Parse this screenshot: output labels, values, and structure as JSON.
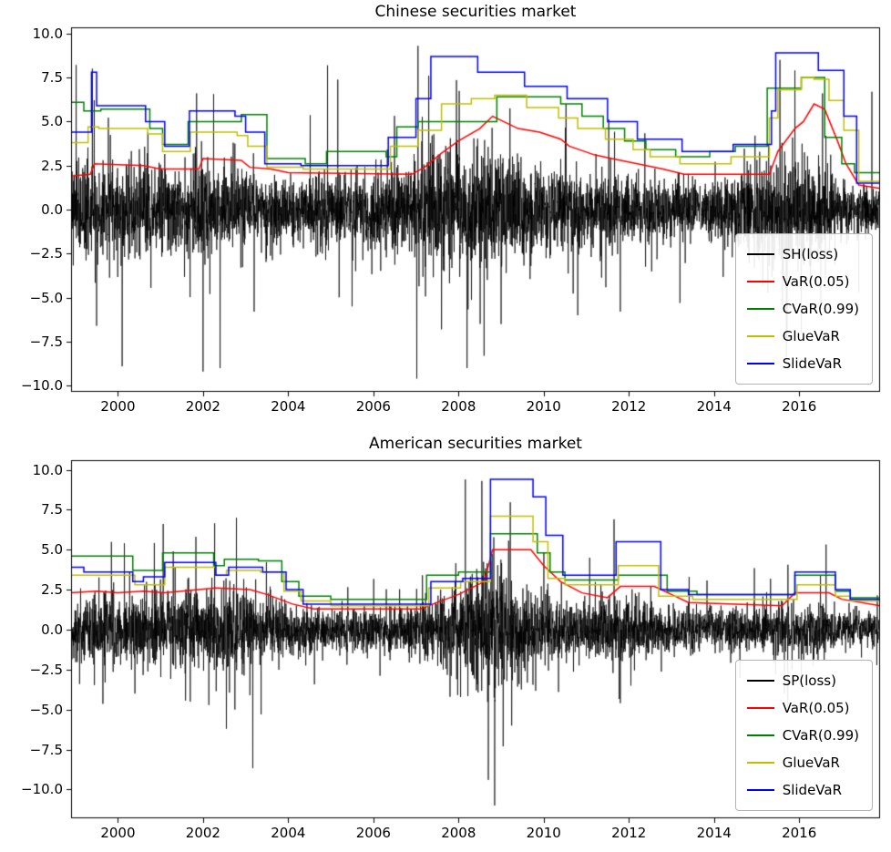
{
  "figure": {
    "background": "#ffffff"
  },
  "chart_data": [
    {
      "type": "line",
      "title": "Chinese securities market",
      "xlabel": "",
      "ylabel": "",
      "grid": false,
      "legend_position": "lower right",
      "x_range": [
        1998.9,
        2017.9
      ],
      "y_range": [
        -10.35,
        10.35
      ],
      "x_tick_values": [
        2000,
        2002,
        2004,
        2006,
        2008,
        2010,
        2012,
        2014,
        2016
      ],
      "x_tick_labels": [
        "2000",
        "2002",
        "2004",
        "2006",
        "2008",
        "2010",
        "2012",
        "2014",
        "2016"
      ],
      "y_tick_values": [
        10,
        7.5,
        5,
        2.5,
        0,
        -2.5,
        -5,
        -7.5,
        -10
      ],
      "y_tick_labels": [
        "10.0",
        "7.5",
        "5.0",
        "2.5",
        "0.0",
        "−2.5",
        "−5.0",
        "−7.5",
        "−10.0"
      ],
      "legend": [
        {
          "label": "SH(loss)",
          "color": "#000000"
        },
        {
          "label": "VaR(0.05)",
          "color": "#ff0000"
        },
        {
          "label": "CVaR(0.99)",
          "color": "#008000"
        },
        {
          "label": "GlueVaR",
          "color": "#bfbf00"
        },
        {
          "label": "SlideVaR",
          "color": "#0000ff"
        }
      ],
      "series": [
        {
          "name": "SH(loss)",
          "color": "#000000",
          "kind": "noise",
          "seed": 7,
          "points_per_year": 250,
          "clip": [
            -9.6,
            9.5
          ],
          "envelope_x": [
            1998.9,
            1999.5,
            2000.5,
            2001.5,
            2002.3,
            2003.0,
            2004.0,
            2005.0,
            2006.0,
            2006.8,
            2007.5,
            2008.5,
            2009.3,
            2010.0,
            2011.0,
            2012.0,
            2013.0,
            2014.0,
            2014.8,
            2015.5,
            2016.0,
            2016.5,
            2017.0,
            2017.9
          ],
          "envelope_sigma": [
            1.4,
            1.35,
            1.25,
            1.2,
            1.3,
            1.0,
            0.85,
            0.95,
            1.0,
            1.3,
            1.7,
            1.8,
            1.6,
            1.3,
            1.1,
            0.95,
            0.85,
            0.8,
            1.1,
            1.7,
            1.5,
            1.3,
            0.8,
            0.7
          ],
          "spikes": [
            [
              1999.4,
              8.0
            ],
            [
              1999.5,
              -6.6
            ],
            [
              2000.1,
              -8.9
            ],
            [
              2001.85,
              6.6
            ],
            [
              2002.0,
              -9.2
            ],
            [
              2002.4,
              -9.0
            ],
            [
              2003.2,
              -5.8
            ],
            [
              2005.5,
              -5.5
            ],
            [
              2007.05,
              9.3
            ],
            [
              2007.3,
              7.6
            ],
            [
              2007.6,
              -6.8
            ],
            [
              2008.2,
              -9.0
            ],
            [
              2008.6,
              -8.3
            ],
            [
              2009.0,
              -6.5
            ],
            [
              2010.8,
              -6.0
            ],
            [
              2013.2,
              -5.3
            ],
            [
              2015.55,
              8.5
            ],
            [
              2015.7,
              -8.4
            ],
            [
              2015.9,
              7.9
            ],
            [
              2016.05,
              -7.0
            ],
            [
              2016.55,
              6.6
            ]
          ]
        },
        {
          "name": "VaR(0.05)",
          "color": "#ff0000",
          "kind": "line",
          "x": [
            1998.9,
            1999.35,
            1999.45,
            2000.6,
            2001.0,
            2001.9,
            2002.0,
            2002.9,
            2003.1,
            2003.6,
            2004.0,
            2006.9,
            2007.2,
            2007.6,
            2008.0,
            2008.5,
            2008.8,
            2009.4,
            2009.9,
            2010.4,
            2010.6,
            2011.2,
            2011.6,
            2012.2,
            2012.8,
            2013.3,
            2015.3,
            2015.5,
            2015.9,
            2016.1,
            2016.35,
            2016.6,
            2016.9,
            2017.1,
            2017.4,
            2017.9
          ],
          "y": [
            1.9,
            2.0,
            2.6,
            2.5,
            2.3,
            2.3,
            2.9,
            2.8,
            2.4,
            2.3,
            2.1,
            2.0,
            2.4,
            3.2,
            3.9,
            4.6,
            5.3,
            4.6,
            4.4,
            4.0,
            3.6,
            3.1,
            2.9,
            2.6,
            2.3,
            2.0,
            2.0,
            3.3,
            4.6,
            5.0,
            6.0,
            5.7,
            3.9,
            2.6,
            1.4,
            1.2
          ]
        },
        {
          "name": "CVaR(0.99)",
          "color": "#008000",
          "kind": "step",
          "x": [
            1998.9,
            1999.2,
            1999.6,
            2000.75,
            2001.05,
            2001.65,
            2002.9,
            2003.5,
            2004.4,
            2004.9,
            2006.3,
            2006.55,
            2007.05,
            2008.9,
            2010.4,
            2010.9,
            2011.4,
            2011.9,
            2012.4,
            2013.1,
            2013.9,
            2014.5,
            2015.25,
            2016.05,
            2016.6,
            2017.0,
            2017.3,
            2017.9
          ],
          "y": [
            6.1,
            5.6,
            5.7,
            4.6,
            3.7,
            5.0,
            5.4,
            2.9,
            2.6,
            3.3,
            3.0,
            4.7,
            5.0,
            6.4,
            6.0,
            5.3,
            4.6,
            3.9,
            3.4,
            3.0,
            3.3,
            3.6,
            6.9,
            7.5,
            4.1,
            2.6,
            2.1,
            2.2
          ]
        },
        {
          "name": "GlueVaR",
          "color": "#bfbf00",
          "kind": "step",
          "x": [
            1998.9,
            1999.3,
            1999.55,
            2000.7,
            2001.05,
            2001.7,
            2002.8,
            2003.05,
            2003.5,
            2004.35,
            2006.4,
            2006.65,
            2007.05,
            2007.6,
            2008.3,
            2008.85,
            2009.6,
            2010.35,
            2010.8,
            2011.45,
            2012.1,
            2012.5,
            2013.2,
            2014.4,
            2015.3,
            2015.5,
            2016.05,
            2016.35,
            2016.7,
            2017.05,
            2017.4,
            2017.9
          ],
          "y": [
            3.8,
            4.7,
            4.6,
            4.3,
            3.3,
            4.4,
            4.2,
            3.6,
            2.4,
            2.3,
            3.6,
            3.6,
            4.5,
            6.0,
            6.3,
            6.5,
            5.8,
            5.2,
            4.6,
            4.0,
            3.4,
            3.0,
            2.6,
            3.0,
            5.2,
            6.8,
            7.5,
            7.4,
            6.2,
            4.5,
            1.6,
            1.5
          ]
        },
        {
          "name": "SlideVaR",
          "color": "#0000ff",
          "kind": "step",
          "x": [
            1998.9,
            1999.38,
            1999.5,
            2000.65,
            2001.1,
            2001.68,
            2002.75,
            2003.0,
            2003.45,
            2004.3,
            2006.35,
            2007.0,
            2007.35,
            2008.45,
            2009.55,
            2010.55,
            2011.5,
            2012.2,
            2013.25,
            2014.45,
            2015.35,
            2015.45,
            2016.45,
            2017.05,
            2017.35,
            2017.9
          ],
          "y": [
            4.4,
            7.8,
            5.9,
            5.0,
            3.6,
            5.6,
            5.3,
            4.4,
            2.6,
            2.5,
            4.1,
            6.3,
            8.7,
            7.8,
            7.0,
            6.3,
            5.0,
            4.0,
            3.3,
            3.7,
            5.6,
            8.9,
            7.9,
            5.3,
            1.5,
            1.3
          ]
        }
      ]
    },
    {
      "type": "line",
      "title": "American securities market",
      "xlabel": "",
      "ylabel": "",
      "grid": false,
      "legend_position": "lower right",
      "x_range": [
        1998.9,
        2017.9
      ],
      "y_range": [
        -11.8,
        10.6
      ],
      "x_tick_values": [
        2000,
        2002,
        2004,
        2006,
        2008,
        2010,
        2012,
        2014,
        2016
      ],
      "x_tick_labels": [
        "2000",
        "2002",
        "2004",
        "2006",
        "2008",
        "2010",
        "2012",
        "2014",
        "2016"
      ],
      "y_tick_values": [
        10,
        7.5,
        5,
        2.5,
        0,
        -2.5,
        -5,
        -7.5,
        -10
      ],
      "y_tick_labels": [
        "10.0",
        "7.5",
        "5.0",
        "2.5",
        "0.0",
        "−2.5",
        "−5.0",
        "−7.5",
        "−10.0"
      ],
      "legend": [
        {
          "label": "SP(loss)",
          "color": "#000000"
        },
        {
          "label": "VaR(0.05)",
          "color": "#ff0000"
        },
        {
          "label": "CVaR(0.99)",
          "color": "#008000"
        },
        {
          "label": "GlueVaR",
          "color": "#bfbf00"
        },
        {
          "label": "SlideVaR",
          "color": "#0000ff"
        }
      ],
      "series": [
        {
          "name": "SP(loss)",
          "color": "#000000",
          "kind": "noise",
          "seed": 99,
          "points_per_year": 250,
          "clip": [
            -11.2,
            9.6
          ],
          "envelope_x": [
            1998.9,
            1999.5,
            2000.5,
            2001.5,
            2002.5,
            2003.2,
            2004.0,
            2005.0,
            2006.5,
            2007.3,
            2008.0,
            2008.8,
            2009.3,
            2010.0,
            2010.8,
            2011.6,
            2012.3,
            2013.0,
            2014.0,
            2015.0,
            2015.8,
            2016.5,
            2017.0,
            2017.9
          ],
          "envelope_sigma": [
            1.05,
            1.1,
            1.15,
            1.2,
            1.35,
            1.15,
            0.75,
            0.65,
            0.62,
            0.85,
            1.3,
            2.1,
            1.7,
            0.95,
            0.85,
            1.1,
            0.8,
            0.62,
            0.6,
            0.7,
            0.8,
            0.75,
            0.5,
            0.5
          ],
          "spikes": [
            [
              1999.1,
              -3.4
            ],
            [
              2000.15,
              5.4
            ],
            [
              2000.4,
              -4.0
            ],
            [
              2001.3,
              4.9
            ],
            [
              2001.7,
              -4.5
            ],
            [
              2002.55,
              -6.2
            ],
            [
              2002.75,
              -5.0
            ],
            [
              2003.1,
              -4.1
            ],
            [
              2007.15,
              3.4
            ],
            [
              2007.8,
              -4.2
            ],
            [
              2008.55,
              9.3
            ],
            [
              2008.7,
              -9.4
            ],
            [
              2008.85,
              -11.0
            ],
            [
              2009.05,
              -7.3
            ],
            [
              2009.25,
              -6.0
            ],
            [
              2010.35,
              -3.9
            ],
            [
              2011.65,
              6.9
            ],
            [
              2011.8,
              -4.6
            ],
            [
              2012.05,
              -3.5
            ],
            [
              2015.65,
              -4.0
            ],
            [
              2016.05,
              -3.2
            ],
            [
              2016.5,
              3.4
            ]
          ]
        },
        {
          "name": "VaR(0.05)",
          "color": "#ff0000",
          "kind": "line",
          "x": [
            1998.9,
            1999.5,
            2000.0,
            2000.6,
            2001.1,
            2001.9,
            2002.3,
            2003.1,
            2003.5,
            2004.1,
            2004.6,
            2007.1,
            2007.5,
            2008.0,
            2008.6,
            2008.8,
            2009.7,
            2010.0,
            2010.4,
            2010.9,
            2011.5,
            2011.8,
            2012.6,
            2013.0,
            2013.4,
            2015.6,
            2015.9,
            2016.7,
            2017.0,
            2017.9
          ],
          "y": [
            2.3,
            2.4,
            2.3,
            2.4,
            2.3,
            2.5,
            2.6,
            2.5,
            2.2,
            1.6,
            1.3,
            1.3,
            1.7,
            2.2,
            3.0,
            5.0,
            5.0,
            4.0,
            3.0,
            2.3,
            2.0,
            2.7,
            2.7,
            2.2,
            1.7,
            1.5,
            2.3,
            2.3,
            1.9,
            1.5
          ]
        },
        {
          "name": "CVaR(0.99)",
          "color": "#008000",
          "kind": "step",
          "x": [
            1998.9,
            2000.35,
            2001.05,
            2002.25,
            2002.5,
            2003.3,
            2003.85,
            2004.25,
            2005.0,
            2007.25,
            2008.0,
            2008.75,
            2009.85,
            2010.15,
            2010.5,
            2011.75,
            2012.9,
            2013.6,
            2015.9,
            2016.85,
            2017.2,
            2017.9
          ],
          "y": [
            4.6,
            3.7,
            4.8,
            4.0,
            4.4,
            4.3,
            3.0,
            2.1,
            1.9,
            3.4,
            3.6,
            6.0,
            4.8,
            3.6,
            3.1,
            3.4,
            2.4,
            2.2,
            3.4,
            2.4,
            2.0,
            2.0
          ]
        },
        {
          "name": "GlueVaR",
          "color": "#bfbf00",
          "kind": "step",
          "x": [
            1998.9,
            2000.4,
            2001.1,
            2002.3,
            2002.55,
            2003.35,
            2003.9,
            2004.3,
            2005.0,
            2007.3,
            2008.05,
            2008.75,
            2009.75,
            2010.1,
            2010.5,
            2011.75,
            2012.7,
            2013.5,
            2015.95,
            2016.85,
            2017.2,
            2017.9
          ],
          "y": [
            3.4,
            2.8,
            3.9,
            3.4,
            3.7,
            3.6,
            2.4,
            1.8,
            1.5,
            2.6,
            3.0,
            7.1,
            5.5,
            3.2,
            2.8,
            4.0,
            2.1,
            1.9,
            2.8,
            2.1,
            1.8,
            1.8
          ]
        },
        {
          "name": "SlideVaR",
          "color": "#0000ff",
          "kind": "step",
          "x": [
            1998.9,
            1999.2,
            2000.35,
            2000.6,
            2001.1,
            2002.3,
            2002.6,
            2003.4,
            2003.95,
            2004.35,
            2007.35,
            2008.1,
            2008.75,
            2009.75,
            2010.05,
            2010.45,
            2011.7,
            2012.75,
            2013.4,
            2015.9,
            2016.85,
            2017.2,
            2017.9
          ],
          "y": [
            3.9,
            3.6,
            3.0,
            3.3,
            4.2,
            3.4,
            3.9,
            3.6,
            2.5,
            1.6,
            3.0,
            3.2,
            9.4,
            8.3,
            5.9,
            3.4,
            5.5,
            2.5,
            2.2,
            3.6,
            2.5,
            1.9,
            1.9
          ]
        }
      ]
    }
  ]
}
